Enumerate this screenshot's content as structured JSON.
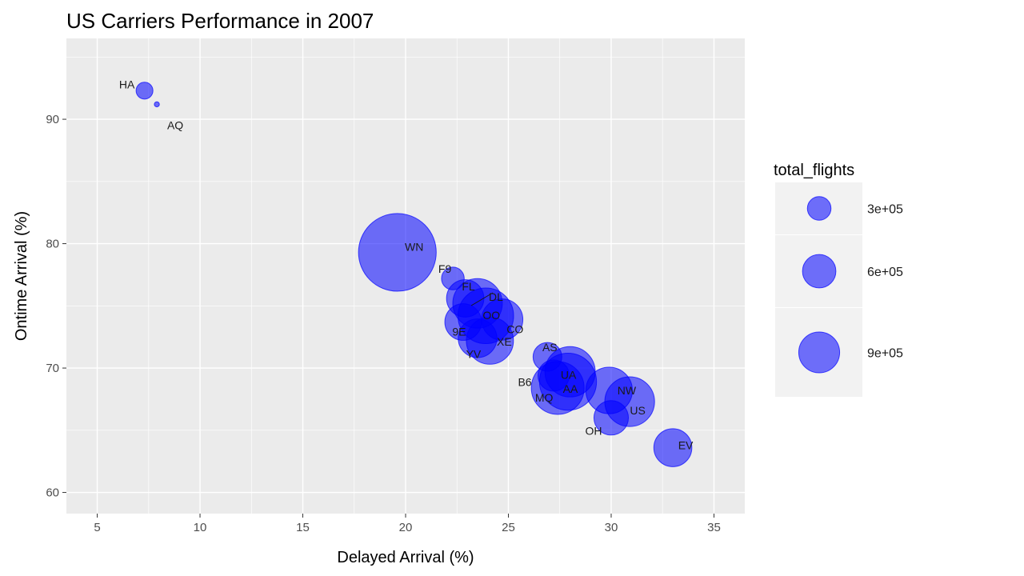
{
  "chart_data": {
    "type": "scatter",
    "title": "US Carriers Performance in 2007",
    "xlabel": "Delayed Arrival (%)",
    "ylabel": "Ontime Arrival (%)",
    "xlim": [
      3.5,
      36.5
    ],
    "ylim": [
      58.3,
      96.5
    ],
    "x_ticks": [
      5,
      10,
      15,
      20,
      25,
      30,
      35
    ],
    "y_ticks": [
      60,
      70,
      80,
      90
    ],
    "grid": true,
    "size_variable": "total_flights",
    "legend": {
      "title": "total_flights",
      "position": "right",
      "entries": [
        {
          "label": "3e+05",
          "value": 300000
        },
        {
          "label": "6e+05",
          "value": 600000
        },
        {
          "label": "9e+05",
          "value": 900000
        }
      ]
    },
    "colors": {
      "point": "#0000ff",
      "panel": "#ebebeb",
      "grid": "#ffffff"
    },
    "points": [
      {
        "label": "HA",
        "x": 7.3,
        "y": 92.3,
        "size": 55000
      },
      {
        "label": "AQ",
        "x": 7.9,
        "y": 91.2,
        "size": 5000
      },
      {
        "label": "WN",
        "x": 19.6,
        "y": 79.3,
        "size": 1170000
      },
      {
        "label": "F9",
        "x": 22.3,
        "y": 77.2,
        "size": 100000
      },
      {
        "label": "FL",
        "x": 22.9,
        "y": 75.6,
        "size": 270000
      },
      {
        "label": "DL",
        "x": 23.5,
        "y": 75.2,
        "size": 475000
      },
      {
        "label": "OO",
        "x": 23.9,
        "y": 74.2,
        "size": 600000
      },
      {
        "label": "CO",
        "x": 24.7,
        "y": 73.9,
        "size": 330000
      },
      {
        "label": "9E",
        "x": 22.8,
        "y": 73.7,
        "size": 260000
      },
      {
        "label": "XE",
        "x": 24.1,
        "y": 72.2,
        "size": 430000
      },
      {
        "label": "YV",
        "x": 23.5,
        "y": 72.4,
        "size": 290000
      },
      {
        "label": "AS",
        "x": 26.9,
        "y": 70.9,
        "size": 160000
      },
      {
        "label": "UA",
        "x": 28.0,
        "y": 69.7,
        "size": 490000
      },
      {
        "label": "B6",
        "x": 27.2,
        "y": 69.4,
        "size": 190000
      },
      {
        "label": "MQ",
        "x": 27.4,
        "y": 68.4,
        "size": 540000
      },
      {
        "label": "AA",
        "x": 27.9,
        "y": 68.9,
        "size": 630000
      },
      {
        "label": "NW",
        "x": 29.9,
        "y": 68.2,
        "size": 420000
      },
      {
        "label": "US",
        "x": 30.9,
        "y": 67.3,
        "size": 480000
      },
      {
        "label": "OH",
        "x": 30.0,
        "y": 66.0,
        "size": 230000
      },
      {
        "label": "EV",
        "x": 33.0,
        "y": 63.6,
        "size": 280000
      }
    ]
  }
}
